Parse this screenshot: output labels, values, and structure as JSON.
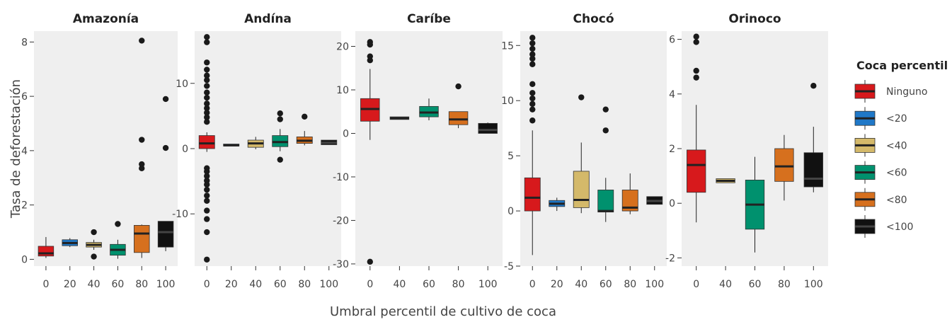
{
  "chart_data": {
    "type": "boxplot",
    "xlabel": "Umbral percentil de cultivo de coca",
    "ylabel": "Tasa de deforestación",
    "legend": {
      "title": "Coca percentil",
      "placement": "right",
      "entries": [
        {
          "label": "Ninguno",
          "color": "#d7191c"
        },
        {
          "label": "<20",
          "color": "#1f78c8"
        },
        {
          "label": "<40",
          "color": "#d4b96a"
        },
        {
          "label": "<60",
          "color": "#00916e"
        },
        {
          "label": "<80",
          "color": "#d6701e"
        },
        {
          "label": "<100",
          "color": "#111111"
        }
      ]
    },
    "background": "#efefef",
    "grid": false,
    "facets": [
      {
        "title": "Amazonía",
        "ylim": [
          -0.25,
          8.4
        ],
        "yticks": [
          0,
          2,
          4,
          6,
          8
        ],
        "ytick_labels": [
          "0",
          "2",
          "4",
          "6",
          "8"
        ],
        "categories": [
          "0",
          "20",
          "40",
          "60",
          "80",
          "100"
        ],
        "boxes": [
          {
            "x": "0",
            "group": "Ninguno",
            "q1": 0.12,
            "median": 0.22,
            "q3": 0.48,
            "whisker_low": 0.05,
            "whisker_high": 0.82,
            "outliers": []
          },
          {
            "x": "20",
            "group": "<20",
            "q1": 0.5,
            "median": 0.6,
            "q3": 0.72,
            "whisker_low": 0.45,
            "whisker_high": 0.78,
            "outliers": []
          },
          {
            "x": "40",
            "group": "<40",
            "q1": 0.45,
            "median": 0.53,
            "q3": 0.62,
            "whisker_low": 0.35,
            "whisker_high": 0.72,
            "outliers": [
              1.0,
              0.1
            ]
          },
          {
            "x": "60",
            "group": "<60",
            "q1": 0.15,
            "median": 0.35,
            "q3": 0.55,
            "whisker_low": 0.02,
            "whisker_high": 0.72,
            "outliers": [
              1.3
            ]
          },
          {
            "x": "80",
            "group": "<80",
            "q1": 0.25,
            "median": 0.95,
            "q3": 1.25,
            "whisker_low": 0.05,
            "whisker_high": 1.28,
            "outliers": [
              3.35,
              3.5,
              4.4,
              8.05
            ]
          },
          {
            "x": "100",
            "group": "<100",
            "q1": 0.45,
            "median": 1.0,
            "q3": 1.4,
            "whisker_low": 0.3,
            "whisker_high": 1.4,
            "outliers": [
              4.1,
              5.9
            ]
          }
        ]
      },
      {
        "title": "Andína",
        "ylim": [
          -18,
          18
        ],
        "yticks": [
          -10,
          0,
          10
        ],
        "ytick_labels": [
          "-10",
          "0",
          "10"
        ],
        "categories": [
          "0",
          "20",
          "40",
          "60",
          "80",
          "100"
        ],
        "boxes": [
          {
            "x": "0",
            "group": "Ninguno",
            "q1": 0.0,
            "median": 0.8,
            "q3": 2.0,
            "whisker_low": -0.5,
            "whisker_high": 2.5,
            "outliers": [
              17.1,
              16.3,
              13.2,
              12.1,
              11.2,
              10.5,
              9.6,
              8.6,
              7.8,
              6.9,
              6.2,
              5.5,
              4.8,
              4.1,
              -3.0,
              -3.5,
              -4.2,
              -4.9,
              -5.5,
              -6.3,
              -7.2,
              -8.0,
              -9.5,
              -10.8,
              -12.8,
              -17.0
            ]
          },
          {
            "x": "20",
            "group": "<20",
            "q1": 0.4,
            "median": 0.5,
            "q3": 0.7,
            "whisker_low": 0.4,
            "whisker_high": 0.7,
            "outliers": []
          },
          {
            "x": "40",
            "group": "<40",
            "q1": 0.2,
            "median": 0.8,
            "q3": 1.3,
            "whisker_low": -0.1,
            "whisker_high": 1.8,
            "outliers": []
          },
          {
            "x": "60",
            "group": "<60",
            "q1": 0.3,
            "median": 1.0,
            "q3": 2.0,
            "whisker_low": -0.4,
            "whisker_high": 3.0,
            "outliers": [
              -1.7,
              4.5,
              5.4
            ]
          },
          {
            "x": "80",
            "group": "<80",
            "q1": 0.8,
            "median": 1.2,
            "q3": 1.8,
            "whisker_low": 0.5,
            "whisker_high": 2.7,
            "outliers": [
              4.9
            ]
          },
          {
            "x": "100",
            "group": "<100",
            "q1": 0.6,
            "median": 0.9,
            "q3": 1.3,
            "whisker_low": 0.6,
            "whisker_high": 1.3,
            "outliers": []
          }
        ]
      },
      {
        "title": "Caríbe",
        "ylim": [
          -30.5,
          23.5
        ],
        "yticks": [
          -30,
          -20,
          -10,
          0,
          10,
          20
        ],
        "ytick_labels": [
          "-30",
          "-20",
          "-10",
          "0",
          "10",
          "20"
        ],
        "categories": [
          "0",
          "40",
          "60",
          "80",
          "100"
        ],
        "boxes": [
          {
            "x": "0",
            "group": "Ninguno",
            "q1": 2.8,
            "median": 5.6,
            "q3": 8.0,
            "whisker_low": -1.5,
            "whisker_high": 14.8,
            "outliers": [
              21.0,
              20.4,
              17.7,
              16.8,
              -29.5
            ]
          },
          {
            "x": "40",
            "group": "<40",
            "q1": 3.2,
            "median": 3.5,
            "q3": 3.8,
            "whisker_low": 3.2,
            "whisker_high": 3.8,
            "outliers": []
          },
          {
            "x": "60",
            "group": "<60",
            "q1": 3.8,
            "median": 4.8,
            "q3": 6.2,
            "whisker_low": 3.0,
            "whisker_high": 8.0,
            "outliers": []
          },
          {
            "x": "80",
            "group": "<80",
            "q1": 2.0,
            "median": 3.2,
            "q3": 5.0,
            "whisker_low": 1.2,
            "whisker_high": 5.0,
            "outliers": [
              10.8
            ]
          },
          {
            "x": "100",
            "group": "<100",
            "q1": 0.0,
            "median": 0.8,
            "q3": 2.3,
            "whisker_low": 0.0,
            "whisker_high": 2.5,
            "outliers": []
          }
        ]
      },
      {
        "title": "Chocó",
        "ylim": [
          -5.0,
          16.3
        ],
        "yticks": [
          -5,
          0,
          5,
          10,
          15
        ],
        "ytick_labels": [
          "-5",
          "0",
          "5",
          "10",
          "15"
        ],
        "categories": [
          "0",
          "20",
          "40",
          "60",
          "80",
          "100"
        ],
        "boxes": [
          {
            "x": "0",
            "group": "Ninguno",
            "q1": 0.0,
            "median": 1.2,
            "q3": 3.0,
            "whisker_low": -4.0,
            "whisker_high": 7.3,
            "outliers": [
              15.7,
              15.2,
              14.7,
              14.2,
              13.8,
              13.3,
              11.5,
              10.7,
              10.2,
              9.7,
              9.2,
              8.2
            ]
          },
          {
            "x": "20",
            "group": "<20",
            "q1": 0.4,
            "median": 0.65,
            "q3": 0.95,
            "whisker_low": 0.0,
            "whisker_high": 1.2,
            "outliers": []
          },
          {
            "x": "40",
            "group": "<40",
            "q1": 0.3,
            "median": 1.0,
            "q3": 3.6,
            "whisker_low": -0.2,
            "whisker_high": 6.2,
            "outliers": [
              10.3
            ]
          },
          {
            "x": "60",
            "group": "<60",
            "q1": -0.1,
            "median": 0.0,
            "q3": 1.9,
            "whisker_low": -1.0,
            "whisker_high": 3.0,
            "outliers": [
              7.3,
              9.2
            ]
          },
          {
            "x": "80",
            "group": "<80",
            "q1": 0.0,
            "median": 0.3,
            "q3": 1.9,
            "whisker_low": -0.3,
            "whisker_high": 3.4,
            "outliers": []
          },
          {
            "x": "100",
            "group": "<100",
            "q1": 0.6,
            "median": 0.9,
            "q3": 1.3,
            "whisker_low": 0.6,
            "whisker_high": 1.3,
            "outliers": []
          }
        ]
      },
      {
        "title": "Orinoco",
        "ylim": [
          -2.3,
          6.3
        ],
        "yticks": [
          -2,
          0,
          2,
          4,
          6
        ],
        "ytick_labels": [
          "-2",
          "0",
          "2",
          "4",
          "6"
        ],
        "categories": [
          "0",
          "40",
          "60",
          "80",
          "100"
        ],
        "boxes": [
          {
            "x": "0",
            "group": "Ninguno",
            "q1": 0.4,
            "median": 1.4,
            "q3": 1.95,
            "whisker_low": -0.7,
            "whisker_high": 3.6,
            "outliers": [
              6.1,
              5.9,
              4.85,
              4.6
            ]
          },
          {
            "x": "40",
            "group": "<40",
            "q1": 0.75,
            "median": 0.82,
            "q3": 0.9,
            "whisker_low": 0.75,
            "whisker_high": 0.9,
            "outliers": []
          },
          {
            "x": "60",
            "group": "<60",
            "q1": -0.95,
            "median": -0.05,
            "q3": 0.85,
            "whisker_low": -1.8,
            "whisker_high": 1.7,
            "outliers": []
          },
          {
            "x": "80",
            "group": "<80",
            "q1": 0.8,
            "median": 1.35,
            "q3": 2.0,
            "whisker_low": 0.1,
            "whisker_high": 2.5,
            "outliers": []
          },
          {
            "x": "100",
            "group": "<100",
            "q1": 0.6,
            "median": 0.9,
            "q3": 1.85,
            "whisker_low": 0.4,
            "whisker_high": 2.8,
            "outliers": [
              4.3
            ]
          }
        ]
      }
    ]
  }
}
